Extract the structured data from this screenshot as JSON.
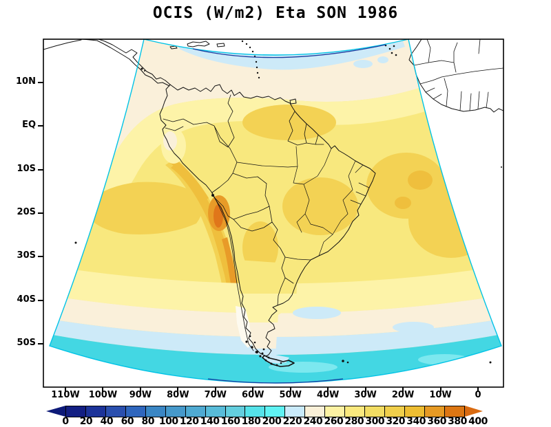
{
  "title": "OCIS (W/m2) Eta SON 1986",
  "axes": {
    "lat_labels": [
      "10N",
      "EQ",
      "10S",
      "20S",
      "30S",
      "40S",
      "50S"
    ],
    "lon_labels": [
      "110W",
      "100W",
      "90W",
      "80W",
      "70W",
      "60W",
      "50W",
      "40W",
      "30W",
      "20W",
      "10W",
      "0"
    ]
  },
  "colorbar": {
    "tick_values": [
      0,
      20,
      40,
      60,
      80,
      100,
      120,
      140,
      160,
      180,
      200,
      220,
      240,
      260,
      280,
      300,
      320,
      340,
      360,
      380,
      400
    ],
    "segment_colors": [
      "#131f83",
      "#1c3399",
      "#2a4fae",
      "#2f66bd",
      "#3a86c4",
      "#4699cb",
      "#4faad2",
      "#58bcd9",
      "#63cede",
      "#55e2e9",
      "#5ff2f3",
      "#c9eafa",
      "#faf0d8",
      "#fdf2a3",
      "#fae97e",
      "#f2dd63",
      "#f0cf4b",
      "#edbd32",
      "#e69a24",
      "#dc7613"
    ],
    "left_arrow_color": "#0d1a78",
    "right_arrow_color": "#d96a10"
  },
  "palette": {
    "mapYellow": "#f8e87e",
    "paleYellow": "#fdf3a8",
    "cream": "#faf0da",
    "paleBlue": "#cdeaf8",
    "cyan": "#43d7e3",
    "cyanBright": "#7ce8ef",
    "golden": "#f3d254",
    "orange": "#efbf3d",
    "orangeDeep": "#e89b28",
    "orangeCore": "#e0761a",
    "snow": "#fdfaef",
    "edgeCyan": "#00c3e6",
    "edgeNavy": "#1b3a9e",
    "ink": "#111111",
    "frame": "#000000"
  },
  "chart_data": {
    "type": "heatmap",
    "title": "OCIS (W/m2) Eta SON 1986",
    "units": "W/m2",
    "x_tick_labels": [
      "110W",
      "100W",
      "90W",
      "80W",
      "70W",
      "60W",
      "50W",
      "40W",
      "30W",
      "20W",
      "10W",
      "0"
    ],
    "y_tick_labels": [
      "10N",
      "EQ",
      "10S",
      "20S",
      "30S",
      "40S",
      "50S"
    ],
    "contour_levels": [
      0,
      20,
      40,
      60,
      80,
      100,
      120,
      140,
      160,
      180,
      200,
      220,
      240,
      260,
      280,
      300,
      320,
      340,
      360,
      380,
      400
    ],
    "legend_position": "bottom",
    "grid": false,
    "observed_features": [
      {
        "region": "Bolivian Altiplano / central Andes core",
        "approx_value_wm2": "340-380"
      },
      {
        "region": "Andes ribbon from Peru through northern Argentina",
        "approx_value_wm2": "320-360"
      },
      {
        "region": "Most of tropical South America and adjacent oceans",
        "approx_value_wm2": "280-300"
      },
      {
        "region": "Central Brazil, northeast Brazil, subtropical SE Pacific and Atlantic patches",
        "approx_value_wm2": "300-320"
      },
      {
        "region": "Northern boundary band near Caribbean (~10N)",
        "approx_value_wm2": "220-260"
      },
      {
        "region": "Mid-latitude band ~35S-45S",
        "approx_value_wm2": "240-280"
      },
      {
        "region": "Band ~45S-50S",
        "approx_value_wm2": "220-240"
      },
      {
        "region": "South of ~50S (southern ocean edge)",
        "approx_value_wm2": "180-220"
      }
    ]
  }
}
